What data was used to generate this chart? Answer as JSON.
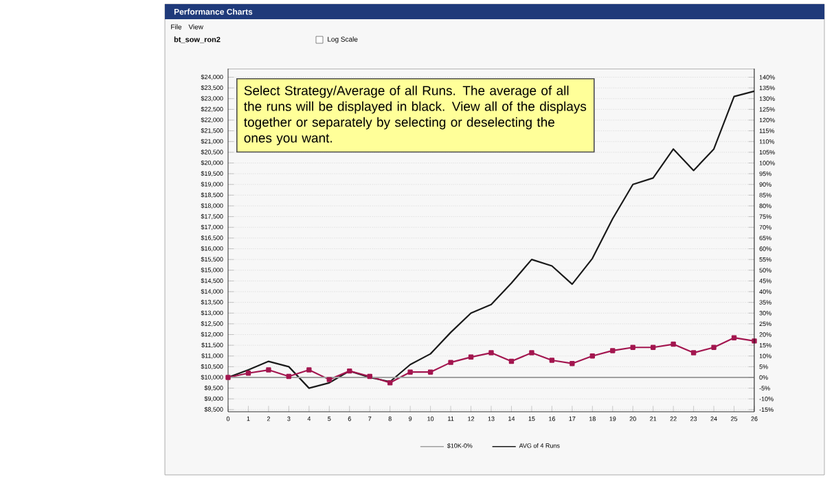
{
  "chart_data": {
    "type": "line",
    "title": "Performance Charts",
    "subtitle": "bt_sow_ron2",
    "annotations": [
      "Select Strategy/Average of all Runs. The average of all the runs will be displayed in black. View all of the displays together or separately by selecting or deselecting the ones you want.",
      "File",
      "View",
      "Log Scale"
    ],
    "x": [
      0,
      1,
      2,
      3,
      4,
      5,
      6,
      7,
      8,
      9,
      10,
      11,
      12,
      13,
      14,
      15,
      16,
      17,
      18,
      19,
      20,
      21,
      22,
      23,
      24,
      25,
      26
    ],
    "xlim": [
      0,
      26
    ],
    "xticks": [
      0,
      1,
      2,
      3,
      4,
      5,
      6,
      7,
      8,
      9,
      10,
      11,
      12,
      13,
      14,
      15,
      16,
      17,
      18,
      19,
      20,
      21,
      22,
      23,
      24,
      25,
      26
    ],
    "ylim": [
      8400,
      24400
    ],
    "yticks": [
      {
        "value": 8500,
        "label": "$8,500"
      },
      {
        "value": 9000,
        "label": "$9,000"
      },
      {
        "value": 9500,
        "label": "$9,500"
      },
      {
        "value": 10000,
        "label": "$10,000"
      },
      {
        "value": 10500,
        "label": "$10,500"
      },
      {
        "value": 11000,
        "label": "$11,000"
      },
      {
        "value": 11500,
        "label": "$11,500"
      },
      {
        "value": 12000,
        "label": "$12,000"
      },
      {
        "value": 12500,
        "label": "$12,500"
      },
      {
        "value": 13000,
        "label": "$13,000"
      },
      {
        "value": 13500,
        "label": "$13,500"
      },
      {
        "value": 14000,
        "label": "$14,000"
      },
      {
        "value": 14500,
        "label": "$14,500"
      },
      {
        "value": 15000,
        "label": "$15,000"
      },
      {
        "value": 15500,
        "label": "$15,500"
      },
      {
        "value": 16000,
        "label": "$16,000"
      },
      {
        "value": 16500,
        "label": "$16,500"
      },
      {
        "value": 17000,
        "label": "$17,000"
      },
      {
        "value": 17500,
        "label": "$17,500"
      },
      {
        "value": 18000,
        "label": "$18,000"
      },
      {
        "value": 18500,
        "label": "$18,500"
      },
      {
        "value": 19000,
        "label": "$19,000"
      },
      {
        "value": 19500,
        "label": "$19,500"
      },
      {
        "value": 20000,
        "label": "$20,000"
      },
      {
        "value": 20500,
        "label": "$20,500"
      },
      {
        "value": 21000,
        "label": "$21,000"
      },
      {
        "value": 21500,
        "label": "$21,500"
      },
      {
        "value": 22000,
        "label": "$22,000"
      },
      {
        "value": 22500,
        "label": "$22,500"
      },
      {
        "value": 23000,
        "label": "$23,000"
      },
      {
        "value": 23500,
        "label": "$23,500"
      },
      {
        "value": 24000,
        "label": "$24,000"
      }
    ],
    "y2lim": [
      -16,
      144
    ],
    "y2ticks": [
      {
        "value": -15,
        "label": "-15%"
      },
      {
        "value": -10,
        "label": "-10%"
      },
      {
        "value": -5,
        "label": "-5%"
      },
      {
        "value": 0,
        "label": "0%"
      },
      {
        "value": 5,
        "label": "5%"
      },
      {
        "value": 10,
        "label": "10%"
      },
      {
        "value": 15,
        "label": "15%"
      },
      {
        "value": 20,
        "label": "20%"
      },
      {
        "value": 25,
        "label": "25%"
      },
      {
        "value": 30,
        "label": "30%"
      },
      {
        "value": 35,
        "label": "35%"
      },
      {
        "value": 40,
        "label": "40%"
      },
      {
        "value": 45,
        "label": "45%"
      },
      {
        "value": 50,
        "label": "50%"
      },
      {
        "value": 55,
        "label": "55%"
      },
      {
        "value": 60,
        "label": "60%"
      },
      {
        "value": 65,
        "label": "65%"
      },
      {
        "value": 70,
        "label": "70%"
      },
      {
        "value": 75,
        "label": "75%"
      },
      {
        "value": 80,
        "label": "80%"
      },
      {
        "value": 85,
        "label": "85%"
      },
      {
        "value": 90,
        "label": "90%"
      },
      {
        "value": 95,
        "label": "95%"
      },
      {
        "value": 100,
        "label": "100%"
      },
      {
        "value": 105,
        "label": "105%"
      },
      {
        "value": 110,
        "label": "110%"
      },
      {
        "value": 115,
        "label": "115%"
      },
      {
        "value": 120,
        "label": "120%"
      },
      {
        "value": 125,
        "label": "125%"
      },
      {
        "value": 130,
        "label": "130%"
      },
      {
        "value": 135,
        "label": "135%"
      },
      {
        "value": 140,
        "label": "140%"
      }
    ],
    "grid": "y",
    "legend": "bottom",
    "series": [
      {
        "name": "$10K-0%",
        "color": "#a0a0a0",
        "values": [
          10000,
          10000,
          10000,
          10000,
          10000,
          10000,
          10000,
          10000,
          10000,
          10000,
          10000,
          10000,
          10000,
          10000,
          10000,
          10000,
          10000,
          10000,
          10000,
          10000,
          10000,
          10000,
          10000,
          10000,
          10000,
          10000,
          10000
        ]
      },
      {
        "color": "#a3164f",
        "marker": "square",
        "values": [
          10000,
          10200,
          10350,
          10050,
          10350,
          9900,
          10300,
          10050,
          9750,
          10250,
          10250,
          10700,
          10950,
          11150,
          10750,
          11150,
          10800,
          10650,
          11000,
          11250,
          11400,
          11400,
          11550,
          11150,
          11400,
          11850,
          11700
        ]
      },
      {
        "name": "AVG of 4 Runs",
        "color": "#1a1a1a",
        "values": [
          10000,
          10350,
          10750,
          10500,
          9500,
          9750,
          10300,
          10000,
          9800,
          10600,
          11100,
          12100,
          13000,
          13400,
          14400,
          15500,
          15200,
          14350,
          15550,
          17400,
          19000,
          19300,
          20650,
          19650,
          20650,
          23100,
          23350
        ]
      }
    ]
  }
}
